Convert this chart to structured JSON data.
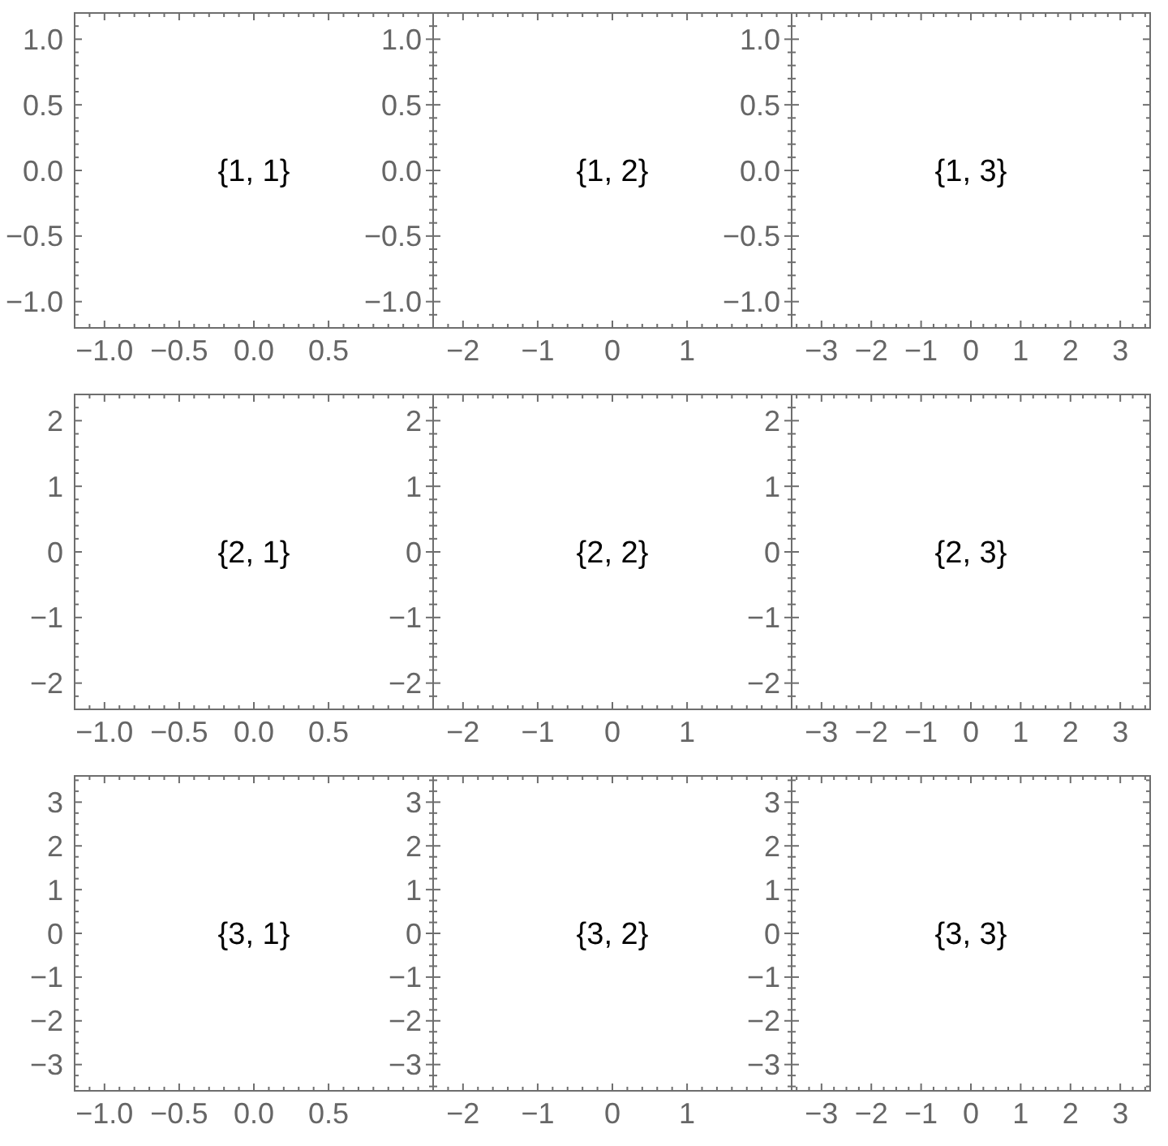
{
  "chart_data": [
    {
      "type": "scatter",
      "xlim": [
        -1.2,
        1.2
      ],
      "ylim": [
        -1.2,
        1.2
      ],
      "xticks": [
        {
          "value": -1.1,
          "label": null
        },
        {
          "value": -1,
          "label": "−1.0"
        },
        {
          "value": -0.9,
          "label": null
        },
        {
          "value": -0.8,
          "label": null
        },
        {
          "value": -0.7,
          "label": null
        },
        {
          "value": -0.6,
          "label": null
        },
        {
          "value": -0.5,
          "label": "−0.5"
        },
        {
          "value": -0.4,
          "label": null
        },
        {
          "value": -0.3,
          "label": null
        },
        {
          "value": -0.2,
          "label": null
        },
        {
          "value": -0.1,
          "label": null
        },
        {
          "value": 0,
          "label": "0.0"
        },
        {
          "value": 0.1,
          "label": null
        },
        {
          "value": 0.2,
          "label": null
        },
        {
          "value": 0.3,
          "label": null
        },
        {
          "value": 0.4,
          "label": null
        },
        0.5,
        {
          "value": 0.6,
          "label": null
        },
        {
          "value": 0.7,
          "label": null
        },
        {
          "value": 0.8,
          "label": null
        },
        {
          "value": 0.9,
          "label": null
        },
        {
          "value": 1,
          "label": null
        },
        {
          "value": 1.1,
          "label": null
        }
      ],
      "yticks": [
        {
          "value": -1.1,
          "label": null
        },
        {
          "value": -1,
          "label": "−1.0"
        },
        {
          "value": -0.9,
          "label": null
        },
        {
          "value": -0.8,
          "label": null
        },
        {
          "value": -0.7,
          "label": null
        },
        {
          "value": -0.6,
          "label": null
        },
        {
          "value": -0.5,
          "label": "−0.5"
        },
        {
          "value": -0.4,
          "label": null
        },
        {
          "value": -0.3,
          "label": null
        },
        {
          "value": -0.2,
          "label": null
        },
        {
          "value": -0.1,
          "label": null
        },
        {
          "value": 0,
          "label": "0.0"
        },
        {
          "value": 0.1,
          "label": null
        },
        {
          "value": 0.2,
          "label": null
        },
        {
          "value": 0.3,
          "label": null
        },
        {
          "value": 0.4,
          "label": null
        },
        0.5,
        {
          "value": 0.6,
          "label": null
        },
        {
          "value": 0.7,
          "label": null
        },
        {
          "value": 0.8,
          "label": null
        },
        {
          "value": 0.9,
          "label": null
        },
        {
          "value": 1,
          "label": "1.0"
        },
        {
          "value": 1.1,
          "label": null
        }
      ],
      "annotations": [
        "{1, 1}"
      ]
    },
    {
      "type": "scatter",
      "xlim": [
        -2.4,
        2.4
      ],
      "ylim": [
        -1.2,
        1.2
      ],
      "xticks": [
        {
          "value": -2.2,
          "label": null
        },
        {
          "value": -2,
          "label": "−2"
        },
        {
          "value": -1.8,
          "label": null
        },
        {
          "value": -1.6,
          "label": null
        },
        {
          "value": -1.4,
          "label": null
        },
        {
          "value": -1.2,
          "label": null
        },
        {
          "value": -1,
          "label": "−1"
        },
        {
          "value": -0.8,
          "label": null
        },
        {
          "value": -0.6,
          "label": null
        },
        {
          "value": -0.4,
          "label": null
        },
        {
          "value": -0.2,
          "label": null
        },
        0,
        {
          "value": 0.2,
          "label": null
        },
        {
          "value": 0.4,
          "label": null
        },
        {
          "value": 0.6,
          "label": null
        },
        {
          "value": 0.8,
          "label": null
        },
        1,
        {
          "value": 1.2,
          "label": null
        },
        {
          "value": 1.4,
          "label": null
        },
        {
          "value": 1.6,
          "label": null
        },
        {
          "value": 1.8,
          "label": null
        },
        {
          "value": 2,
          "label": null
        },
        {
          "value": 2.2,
          "label": null
        }
      ],
      "yticks": [
        {
          "value": -1.1,
          "label": null
        },
        {
          "value": -1,
          "label": "−1.0"
        },
        {
          "value": -0.9,
          "label": null
        },
        {
          "value": -0.8,
          "label": null
        },
        {
          "value": -0.7,
          "label": null
        },
        {
          "value": -0.6,
          "label": null
        },
        {
          "value": -0.5,
          "label": "−0.5"
        },
        {
          "value": -0.4,
          "label": null
        },
        {
          "value": -0.3,
          "label": null
        },
        {
          "value": -0.2,
          "label": null
        },
        {
          "value": -0.1,
          "label": null
        },
        {
          "value": 0,
          "label": "0.0"
        },
        {
          "value": 0.1,
          "label": null
        },
        {
          "value": 0.2,
          "label": null
        },
        {
          "value": 0.3,
          "label": null
        },
        {
          "value": 0.4,
          "label": null
        },
        0.5,
        {
          "value": 0.6,
          "label": null
        },
        {
          "value": 0.7,
          "label": null
        },
        {
          "value": 0.8,
          "label": null
        },
        {
          "value": 0.9,
          "label": null
        },
        {
          "value": 1,
          "label": "1.0"
        },
        {
          "value": 1.1,
          "label": null
        }
      ],
      "annotations": [
        "{1, 2}"
      ]
    },
    {
      "type": "scatter",
      "xlim": [
        -3.6,
        3.6
      ],
      "ylim": [
        -1.2,
        1.2
      ],
      "xticks": [
        {
          "value": -3.5,
          "label": null
        },
        {
          "value": -3.25,
          "label": null
        },
        {
          "value": -3,
          "label": "−3"
        },
        {
          "value": -2.75,
          "label": null
        },
        {
          "value": -2.5,
          "label": null
        },
        {
          "value": -2.25,
          "label": null
        },
        {
          "value": -2,
          "label": "−2"
        },
        {
          "value": -1.75,
          "label": null
        },
        {
          "value": -1.5,
          "label": null
        },
        {
          "value": -1.25,
          "label": null
        },
        {
          "value": -1,
          "label": "−1"
        },
        {
          "value": -0.75,
          "label": null
        },
        {
          "value": -0.5,
          "label": null
        },
        {
          "value": -0.25,
          "label": null
        },
        0,
        {
          "value": 0.25,
          "label": null
        },
        {
          "value": 0.5,
          "label": null
        },
        {
          "value": 0.75,
          "label": null
        },
        1,
        {
          "value": 1.25,
          "label": null
        },
        {
          "value": 1.5,
          "label": null
        },
        {
          "value": 1.75,
          "label": null
        },
        2,
        {
          "value": 2.25,
          "label": null
        },
        {
          "value": 2.5,
          "label": null
        },
        {
          "value": 2.75,
          "label": null
        },
        3,
        {
          "value": 3.25,
          "label": null
        },
        {
          "value": 3.5,
          "label": null
        }
      ],
      "yticks": [
        {
          "value": -1.1,
          "label": null
        },
        {
          "value": -1,
          "label": "−1.0"
        },
        {
          "value": -0.9,
          "label": null
        },
        {
          "value": -0.8,
          "label": null
        },
        {
          "value": -0.7,
          "label": null
        },
        {
          "value": -0.6,
          "label": null
        },
        {
          "value": -0.5,
          "label": "−0.5"
        },
        {
          "value": -0.4,
          "label": null
        },
        {
          "value": -0.3,
          "label": null
        },
        {
          "value": -0.2,
          "label": null
        },
        {
          "value": -0.1,
          "label": null
        },
        {
          "value": 0,
          "label": "0.0"
        },
        {
          "value": 0.1,
          "label": null
        },
        {
          "value": 0.2,
          "label": null
        },
        {
          "value": 0.3,
          "label": null
        },
        {
          "value": 0.4,
          "label": null
        },
        0.5,
        {
          "value": 0.6,
          "label": null
        },
        {
          "value": 0.7,
          "label": null
        },
        {
          "value": 0.8,
          "label": null
        },
        {
          "value": 0.9,
          "label": null
        },
        {
          "value": 1,
          "label": "1.0"
        },
        {
          "value": 1.1,
          "label": null
        }
      ],
      "annotations": [
        "{1, 3}"
      ]
    },
    {
      "type": "scatter",
      "xlim": [
        -1.2,
        1.2
      ],
      "ylim": [
        -2.4,
        2.4
      ],
      "xticks": [
        {
          "value": -1.1,
          "label": null
        },
        {
          "value": -1,
          "label": "−1.0"
        },
        {
          "value": -0.9,
          "label": null
        },
        {
          "value": -0.8,
          "label": null
        },
        {
          "value": -0.7,
          "label": null
        },
        {
          "value": -0.6,
          "label": null
        },
        {
          "value": -0.5,
          "label": "−0.5"
        },
        {
          "value": -0.4,
          "label": null
        },
        {
          "value": -0.3,
          "label": null
        },
        {
          "value": -0.2,
          "label": null
        },
        {
          "value": -0.1,
          "label": null
        },
        {
          "value": 0,
          "label": "0.0"
        },
        {
          "value": 0.1,
          "label": null
        },
        {
          "value": 0.2,
          "label": null
        },
        {
          "value": 0.3,
          "label": null
        },
        {
          "value": 0.4,
          "label": null
        },
        0.5,
        {
          "value": 0.6,
          "label": null
        },
        {
          "value": 0.7,
          "label": null
        },
        {
          "value": 0.8,
          "label": null
        },
        {
          "value": 0.9,
          "label": null
        },
        {
          "value": 1,
          "label": null
        },
        {
          "value": 1.1,
          "label": null
        }
      ],
      "yticks": [
        {
          "value": -2.2,
          "label": null
        },
        {
          "value": -2,
          "label": "−2"
        },
        {
          "value": -1.8,
          "label": null
        },
        {
          "value": -1.6,
          "label": null
        },
        {
          "value": -1.4,
          "label": null
        },
        {
          "value": -1.2,
          "label": null
        },
        {
          "value": -1,
          "label": "−1"
        },
        {
          "value": -0.8,
          "label": null
        },
        {
          "value": -0.6,
          "label": null
        },
        {
          "value": -0.4,
          "label": null
        },
        {
          "value": -0.2,
          "label": null
        },
        0,
        {
          "value": 0.2,
          "label": null
        },
        {
          "value": 0.4,
          "label": null
        },
        {
          "value": 0.6,
          "label": null
        },
        {
          "value": 0.8,
          "label": null
        },
        1,
        {
          "value": 1.2,
          "label": null
        },
        {
          "value": 1.4,
          "label": null
        },
        {
          "value": 1.6,
          "label": null
        },
        {
          "value": 1.8,
          "label": null
        },
        2,
        {
          "value": 2.2,
          "label": null
        }
      ],
      "annotations": [
        "{2, 1}"
      ]
    },
    {
      "type": "scatter",
      "xlim": [
        -2.4,
        2.4
      ],
      "ylim": [
        -2.4,
        2.4
      ],
      "xticks": [
        {
          "value": -2.2,
          "label": null
        },
        {
          "value": -2,
          "label": "−2"
        },
        {
          "value": -1.8,
          "label": null
        },
        {
          "value": -1.6,
          "label": null
        },
        {
          "value": -1.4,
          "label": null
        },
        {
          "value": -1.2,
          "label": null
        },
        {
          "value": -1,
          "label": "−1"
        },
        {
          "value": -0.8,
          "label": null
        },
        {
          "value": -0.6,
          "label": null
        },
        {
          "value": -0.4,
          "label": null
        },
        {
          "value": -0.2,
          "label": null
        },
        0,
        {
          "value": 0.2,
          "label": null
        },
        {
          "value": 0.4,
          "label": null
        },
        {
          "value": 0.6,
          "label": null
        },
        {
          "value": 0.8,
          "label": null
        },
        1,
        {
          "value": 1.2,
          "label": null
        },
        {
          "value": 1.4,
          "label": null
        },
        {
          "value": 1.6,
          "label": null
        },
        {
          "value": 1.8,
          "label": null
        },
        {
          "value": 2,
          "label": null
        },
        {
          "value": 2.2,
          "label": null
        }
      ],
      "yticks": [
        {
          "value": -2.2,
          "label": null
        },
        {
          "value": -2,
          "label": "−2"
        },
        {
          "value": -1.8,
          "label": null
        },
        {
          "value": -1.6,
          "label": null
        },
        {
          "value": -1.4,
          "label": null
        },
        {
          "value": -1.2,
          "label": null
        },
        {
          "value": -1,
          "label": "−1"
        },
        {
          "value": -0.8,
          "label": null
        },
        {
          "value": -0.6,
          "label": null
        },
        {
          "value": -0.4,
          "label": null
        },
        {
          "value": -0.2,
          "label": null
        },
        0,
        {
          "value": 0.2,
          "label": null
        },
        {
          "value": 0.4,
          "label": null
        },
        {
          "value": 0.6,
          "label": null
        },
        {
          "value": 0.8,
          "label": null
        },
        1,
        {
          "value": 1.2,
          "label": null
        },
        {
          "value": 1.4,
          "label": null
        },
        {
          "value": 1.6,
          "label": null
        },
        {
          "value": 1.8,
          "label": null
        },
        2,
        {
          "value": 2.2,
          "label": null
        }
      ],
      "annotations": [
        "{2, 2}"
      ]
    },
    {
      "type": "scatter",
      "xlim": [
        -3.6,
        3.6
      ],
      "ylim": [
        -2.4,
        2.4
      ],
      "xticks": [
        {
          "value": -3.5,
          "label": null
        },
        {
          "value": -3.25,
          "label": null
        },
        {
          "value": -3,
          "label": "−3"
        },
        {
          "value": -2.75,
          "label": null
        },
        {
          "value": -2.5,
          "label": null
        },
        {
          "value": -2.25,
          "label": null
        },
        {
          "value": -2,
          "label": "−2"
        },
        {
          "value": -1.75,
          "label": null
        },
        {
          "value": -1.5,
          "label": null
        },
        {
          "value": -1.25,
          "label": null
        },
        {
          "value": -1,
          "label": "−1"
        },
        {
          "value": -0.75,
          "label": null
        },
        {
          "value": -0.5,
          "label": null
        },
        {
          "value": -0.25,
          "label": null
        },
        0,
        {
          "value": 0.25,
          "label": null
        },
        {
          "value": 0.5,
          "label": null
        },
        {
          "value": 0.75,
          "label": null
        },
        1,
        {
          "value": 1.25,
          "label": null
        },
        {
          "value": 1.5,
          "label": null
        },
        {
          "value": 1.75,
          "label": null
        },
        2,
        {
          "value": 2.25,
          "label": null
        },
        {
          "value": 2.5,
          "label": null
        },
        {
          "value": 2.75,
          "label": null
        },
        3,
        {
          "value": 3.25,
          "label": null
        },
        {
          "value": 3.5,
          "label": null
        }
      ],
      "yticks": [
        {
          "value": -2.2,
          "label": null
        },
        {
          "value": -2,
          "label": "−2"
        },
        {
          "value": -1.8,
          "label": null
        },
        {
          "value": -1.6,
          "label": null
        },
        {
          "value": -1.4,
          "label": null
        },
        {
          "value": -1.2,
          "label": null
        },
        {
          "value": -1,
          "label": "−1"
        },
        {
          "value": -0.8,
          "label": null
        },
        {
          "value": -0.6,
          "label": null
        },
        {
          "value": -0.4,
          "label": null
        },
        {
          "value": -0.2,
          "label": null
        },
        0,
        {
          "value": 0.2,
          "label": null
        },
        {
          "value": 0.4,
          "label": null
        },
        {
          "value": 0.6,
          "label": null
        },
        {
          "value": 0.8,
          "label": null
        },
        1,
        {
          "value": 1.2,
          "label": null
        },
        {
          "value": 1.4,
          "label": null
        },
        {
          "value": 1.6,
          "label": null
        },
        {
          "value": 1.8,
          "label": null
        },
        2,
        {
          "value": 2.2,
          "label": null
        }
      ],
      "annotations": [
        "{2, 3}"
      ]
    },
    {
      "type": "scatter",
      "xlim": [
        -1.2,
        1.2
      ],
      "ylim": [
        -3.6,
        3.6
      ],
      "xticks": [
        {
          "value": -1.1,
          "label": null
        },
        {
          "value": -1,
          "label": "−1.0"
        },
        {
          "value": -0.9,
          "label": null
        },
        {
          "value": -0.8,
          "label": null
        },
        {
          "value": -0.7,
          "label": null
        },
        {
          "value": -0.6,
          "label": null
        },
        {
          "value": -0.5,
          "label": "−0.5"
        },
        {
          "value": -0.4,
          "label": null
        },
        {
          "value": -0.3,
          "label": null
        },
        {
          "value": -0.2,
          "label": null
        },
        {
          "value": -0.1,
          "label": null
        },
        {
          "value": 0,
          "label": "0.0"
        },
        {
          "value": 0.1,
          "label": null
        },
        {
          "value": 0.2,
          "label": null
        },
        {
          "value": 0.3,
          "label": null
        },
        {
          "value": 0.4,
          "label": null
        },
        0.5,
        {
          "value": 0.6,
          "label": null
        },
        {
          "value": 0.7,
          "label": null
        },
        {
          "value": 0.8,
          "label": null
        },
        {
          "value": 0.9,
          "label": null
        },
        {
          "value": 1,
          "label": null
        },
        {
          "value": 1.1,
          "label": null
        }
      ],
      "yticks": [
        {
          "value": -3.5,
          "label": null
        },
        {
          "value": -3.25,
          "label": null
        },
        {
          "value": -3,
          "label": "−3"
        },
        {
          "value": -2.75,
          "label": null
        },
        {
          "value": -2.5,
          "label": null
        },
        {
          "value": -2.25,
          "label": null
        },
        {
          "value": -2,
          "label": "−2"
        },
        {
          "value": -1.75,
          "label": null
        },
        {
          "value": -1.5,
          "label": null
        },
        {
          "value": -1.25,
          "label": null
        },
        {
          "value": -1,
          "label": "−1"
        },
        {
          "value": -0.75,
          "label": null
        },
        {
          "value": -0.5,
          "label": null
        },
        {
          "value": -0.25,
          "label": null
        },
        0,
        {
          "value": 0.25,
          "label": null
        },
        {
          "value": 0.5,
          "label": null
        },
        {
          "value": 0.75,
          "label": null
        },
        1,
        {
          "value": 1.25,
          "label": null
        },
        {
          "value": 1.5,
          "label": null
        },
        {
          "value": 1.75,
          "label": null
        },
        2,
        {
          "value": 2.25,
          "label": null
        },
        {
          "value": 2.5,
          "label": null
        },
        {
          "value": 2.75,
          "label": null
        },
        3,
        {
          "value": 3.25,
          "label": null
        },
        {
          "value": 3.5,
          "label": null
        }
      ],
      "annotations": [
        "{3, 1}"
      ]
    },
    {
      "type": "scatter",
      "xlim": [
        -2.4,
        2.4
      ],
      "ylim": [
        -3.6,
        3.6
      ],
      "xticks": [
        {
          "value": -2.2,
          "label": null
        },
        {
          "value": -2,
          "label": "−2"
        },
        {
          "value": -1.8,
          "label": null
        },
        {
          "value": -1.6,
          "label": null
        },
        {
          "value": -1.4,
          "label": null
        },
        {
          "value": -1.2,
          "label": null
        },
        {
          "value": -1,
          "label": "−1"
        },
        {
          "value": -0.8,
          "label": null
        },
        {
          "value": -0.6,
          "label": null
        },
        {
          "value": -0.4,
          "label": null
        },
        {
          "value": -0.2,
          "label": null
        },
        0,
        {
          "value": 0.2,
          "label": null
        },
        {
          "value": 0.4,
          "label": null
        },
        {
          "value": 0.6,
          "label": null
        },
        {
          "value": 0.8,
          "label": null
        },
        1,
        {
          "value": 1.2,
          "label": null
        },
        {
          "value": 1.4,
          "label": null
        },
        {
          "value": 1.6,
          "label": null
        },
        {
          "value": 1.8,
          "label": null
        },
        {
          "value": 2,
          "label": null
        },
        {
          "value": 2.2,
          "label": null
        }
      ],
      "yticks": [
        {
          "value": -3.5,
          "label": null
        },
        {
          "value": -3.25,
          "label": null
        },
        {
          "value": -3,
          "label": "−3"
        },
        {
          "value": -2.75,
          "label": null
        },
        {
          "value": -2.5,
          "label": null
        },
        {
          "value": -2.25,
          "label": null
        },
        {
          "value": -2,
          "label": "−2"
        },
        {
          "value": -1.75,
          "label": null
        },
        {
          "value": -1.5,
          "label": null
        },
        {
          "value": -1.25,
          "label": null
        },
        {
          "value": -1,
          "label": "−1"
        },
        {
          "value": -0.75,
          "label": null
        },
        {
          "value": -0.5,
          "label": null
        },
        {
          "value": -0.25,
          "label": null
        },
        0,
        {
          "value": 0.25,
          "label": null
        },
        {
          "value": 0.5,
          "label": null
        },
        {
          "value": 0.75,
          "label": null
        },
        1,
        {
          "value": 1.25,
          "label": null
        },
        {
          "value": 1.5,
          "label": null
        },
        {
          "value": 1.75,
          "label": null
        },
        2,
        {
          "value": 2.25,
          "label": null
        },
        {
          "value": 2.5,
          "label": null
        },
        {
          "value": 2.75,
          "label": null
        },
        3,
        {
          "value": 3.25,
          "label": null
        },
        {
          "value": 3.5,
          "label": null
        }
      ],
      "annotations": [
        "{3, 2}"
      ]
    },
    {
      "type": "scatter",
      "xlim": [
        -3.6,
        3.6
      ],
      "ylim": [
        -3.6,
        3.6
      ],
      "xticks": [
        {
          "value": -3.5,
          "label": null
        },
        {
          "value": -3.25,
          "label": null
        },
        {
          "value": -3,
          "label": "−3"
        },
        {
          "value": -2.75,
          "label": null
        },
        {
          "value": -2.5,
          "label": null
        },
        {
          "value": -2.25,
          "label": null
        },
        {
          "value": -2,
          "label": "−2"
        },
        {
          "value": -1.75,
          "label": null
        },
        {
          "value": -1.5,
          "label": null
        },
        {
          "value": -1.25,
          "label": null
        },
        {
          "value": -1,
          "label": "−1"
        },
        {
          "value": -0.75,
          "label": null
        },
        {
          "value": -0.5,
          "label": null
        },
        {
          "value": -0.25,
          "label": null
        },
        0,
        {
          "value": 0.25,
          "label": null
        },
        {
          "value": 0.5,
          "label": null
        },
        {
          "value": 0.75,
          "label": null
        },
        1,
        {
          "value": 1.25,
          "label": null
        },
        {
          "value": 1.5,
          "label": null
        },
        {
          "value": 1.75,
          "label": null
        },
        2,
        {
          "value": 2.25,
          "label": null
        },
        {
          "value": 2.5,
          "label": null
        },
        {
          "value": 2.75,
          "label": null
        },
        3,
        {
          "value": 3.25,
          "label": null
        },
        {
          "value": 3.5,
          "label": null
        }
      ],
      "yticks": [
        {
          "value": -3.5,
          "label": null
        },
        {
          "value": -3.25,
          "label": null
        },
        {
          "value": -3,
          "label": "−3"
        },
        {
          "value": -2.75,
          "label": null
        },
        {
          "value": -2.5,
          "label": null
        },
        {
          "value": -2.25,
          "label": null
        },
        {
          "value": -2,
          "label": "−2"
        },
        {
          "value": -1.75,
          "label": null
        },
        {
          "value": -1.5,
          "label": null
        },
        {
          "value": -1.25,
          "label": null
        },
        {
          "value": -1,
          "label": "−1"
        },
        {
          "value": -0.75,
          "label": null
        },
        {
          "value": -0.5,
          "label": null
        },
        {
          "value": -0.25,
          "label": null
        },
        0,
        {
          "value": 0.25,
          "label": null
        },
        {
          "value": 0.5,
          "label": null
        },
        {
          "value": 0.75,
          "label": null
        },
        1,
        {
          "value": 1.25,
          "label": null
        },
        {
          "value": 1.5,
          "label": null
        },
        {
          "value": 1.75,
          "label": null
        },
        2,
        {
          "value": 2.25,
          "label": null
        },
        {
          "value": 2.5,
          "label": null
        },
        {
          "value": 2.75,
          "label": null
        },
        3,
        {
          "value": 3.25,
          "label": null
        },
        {
          "value": 3.5,
          "label": null
        }
      ],
      "annotations": [
        "{3, 3}"
      ]
    }
  ]
}
